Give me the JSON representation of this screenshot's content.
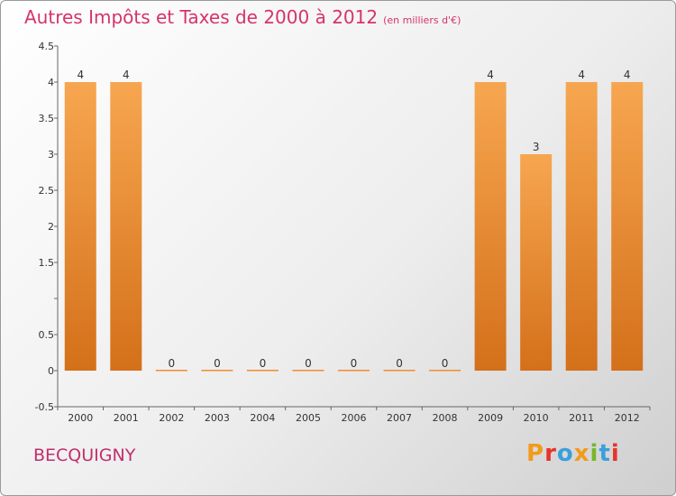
{
  "title": "Autres Impôts et Taxes de 2000 à 2012",
  "unit": "(en milliers d'€)",
  "commune": "BECQUIGNY",
  "logo": {
    "text": "Proxiti",
    "colors": [
      "#f39a1b",
      "#e8322c",
      "#3aa0dc",
      "#f39a1b",
      "#77b82a",
      "#3aa0dc",
      "#e8322c"
    ]
  },
  "chart_data": {
    "type": "bar",
    "title": "Autres Impôts et Taxes de 2000 à 2012",
    "subtitle": "(en milliers d'€)",
    "categories": [
      "2000",
      "2001",
      "2002",
      "2003",
      "2004",
      "2005",
      "2006",
      "2007",
      "2008",
      "2009",
      "2010",
      "2011",
      "2012"
    ],
    "values": [
      4,
      4,
      0,
      0,
      0,
      0,
      0,
      0,
      0,
      4,
      3,
      4,
      4
    ],
    "data_labels": [
      "4",
      "4",
      "0",
      "0",
      "0",
      "0",
      "0",
      "0",
      "0",
      "4",
      "3",
      "4",
      "4"
    ],
    "ylim": [
      -0.5,
      4.5
    ],
    "yticks": [
      -0.5,
      0,
      0.5,
      1,
      1.5,
      2,
      2.5,
      3,
      3.5,
      4,
      4.5
    ],
    "ytick_labels": [
      "-0.5",
      "0",
      "0.5",
      "",
      "1.5",
      "2",
      "2.5",
      "3",
      "3.5",
      "4",
      "4.5"
    ],
    "grid": false,
    "bar_color": "#f08c30"
  }
}
